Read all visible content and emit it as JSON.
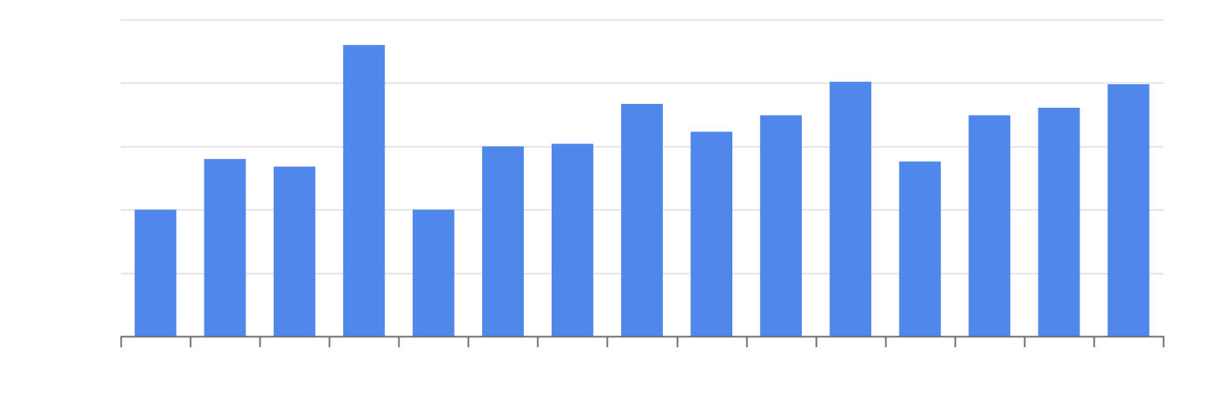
{
  "chart_data": {
    "type": "bar",
    "categories": [
      "",
      "",
      "",
      "",
      "",
      "",
      "",
      "",
      "",
      "",
      "",
      "",
      "",
      "",
      ""
    ],
    "values": [
      2.0,
      2.8,
      2.68,
      4.6,
      2.0,
      3.0,
      3.04,
      3.67,
      3.23,
      3.49,
      4.02,
      2.76,
      3.49,
      3.61,
      3.98
    ],
    "ylim": [
      0,
      5
    ],
    "yticks": [
      0,
      1,
      2,
      3,
      4,
      5
    ],
    "grid": true,
    "colors": {
      "bar": "#4F88EA",
      "grid": "#E3E3E3",
      "axis": "#6B6B6B"
    }
  }
}
